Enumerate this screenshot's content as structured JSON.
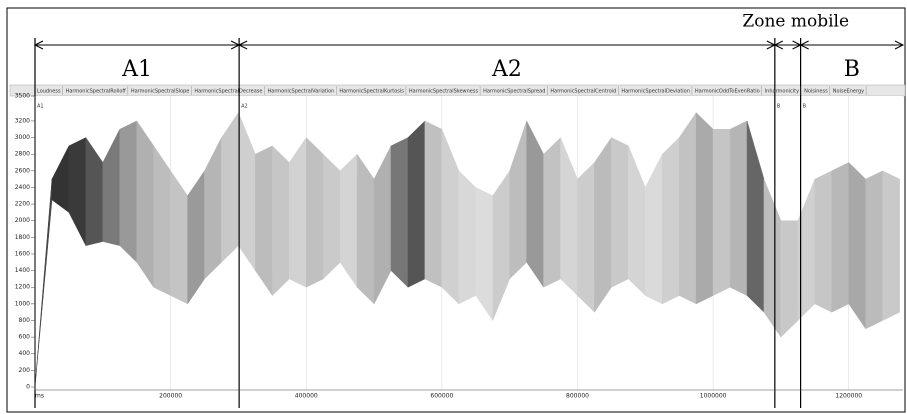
{
  "chart_data": {
    "type": "band",
    "x_label": "ms",
    "regions": [
      {
        "label": "A1",
        "start": 0,
        "end": 301000
      },
      {
        "label": "A2",
        "start": 301000,
        "end": 1091000
      },
      {
        "label": "Zone mobile",
        "start": 1091000,
        "end": 1129000
      },
      {
        "label": "B",
        "start": 1129000,
        "end": 1280000
      }
    ],
    "markers": [
      {
        "label": "A1",
        "position": 0
      },
      {
        "label": "A2",
        "position": 301000
      },
      {
        "label": "B",
        "position": 1091000
      },
      {
        "label": "B",
        "position": 1129000
      }
    ],
    "tabs": [
      "Loudness",
      "HarmonicSpectralRolloff",
      "HarmonicSpectralSlope",
      "HarmonicSpectralDecrease",
      "HarmonicSpectralVariation",
      "HarmonicSpectralKurtosis",
      "HarmonicSpectralSkewness",
      "HarmonicSpectralSpread",
      "HarmonicSpectralCentroid",
      "HarmonicSpectralDeviation",
      "HarmonicOddToEvenRatio",
      "Inharmonicity",
      "Noisiness",
      "NoiseEnergy"
    ],
    "x": [
      0,
      25000,
      50000,
      75000,
      100000,
      125000,
      150000,
      175000,
      200000,
      225000,
      250000,
      275000,
      300000,
      325000,
      350000,
      375000,
      400000,
      425000,
      450000,
      475000,
      500000,
      525000,
      550000,
      575000,
      600000,
      625000,
      650000,
      675000,
      700000,
      725000,
      750000,
      775000,
      800000,
      825000,
      850000,
      875000,
      900000,
      925000,
      950000,
      975000,
      1000000,
      1025000,
      1050000,
      1075000,
      1100000,
      1125000,
      1150000,
      1175000,
      1200000,
      1225000,
      1250000,
      1275000
    ],
    "series": [
      {
        "name": "upper",
        "values": [
          0,
          2500,
          2900,
          3000,
          2700,
          3100,
          3200,
          2900,
          2600,
          2300,
          2600,
          3000,
          3300,
          2800,
          2900,
          2700,
          3000,
          2800,
          2600,
          2800,
          2500,
          2900,
          3000,
          3200,
          3100,
          2600,
          2400,
          2300,
          2600,
          3200,
          2800,
          3000,
          2500,
          2700,
          3000,
          2900,
          2400,
          2800,
          3000,
          3300,
          3100,
          3100,
          3200,
          2500,
          2000,
          2000,
          2500,
          2600,
          2700,
          2500,
          2600,
          2500
        ]
      },
      {
        "name": "lower",
        "values": [
          0,
          2250,
          2100,
          1700,
          1750,
          1700,
          1500,
          1200,
          1100,
          1000,
          1300,
          1500,
          1700,
          1400,
          1100,
          1300,
          1200,
          1300,
          1500,
          1200,
          1000,
          1400,
          1200,
          1300,
          1200,
          1000,
          1100,
          800,
          1300,
          1500,
          1200,
          1300,
          1100,
          900,
          1200,
          1300,
          1100,
          1000,
          1100,
          1000,
          1100,
          1200,
          1100,
          900,
          600,
          800,
          1000,
          900,
          1000,
          700,
          800,
          900
        ]
      }
    ],
    "shades": [
      "#444444",
      "#333333",
      "#3a3a3a",
      "#555555",
      "#7a7a7a",
      "#999999",
      "#b0b0b0",
      "#bdbdbd",
      "#c4c4c4",
      "#9a9a9a",
      "#b5b5b5",
      "#c8c8c8",
      "#cfcfcf",
      "#bcbcbc",
      "#c6c6c6",
      "#d2d2d2",
      "#c0c0c0",
      "#cacaca",
      "#d4d4d4",
      "#bcbcbc",
      "#b0b0b0",
      "#777777",
      "#555555",
      "#c0c0c0",
      "#d0d0d0",
      "#d8d8d8",
      "#dcdcdc",
      "#cccccc",
      "#bdbdbd",
      "#999999",
      "#c2c2c2",
      "#d5d5d5",
      "#cccccc",
      "#bbbbbb",
      "#c9c9c9",
      "#d4d4d4",
      "#dadada",
      "#cfcfcf",
      "#c2c2c2",
      "#aaaaaa",
      "#c5c5c5",
      "#b5b5b5",
      "#666666",
      "#bdbdbd",
      "#c8c8c8",
      "#d0d0d0",
      "#c6c6c6",
      "#b8b8b8",
      "#a8a8a8",
      "#bbbbbb",
      "#c9c9c9"
    ],
    "xlim": [
      0,
      1280000
    ],
    "ylim": [
      0,
      3500
    ],
    "xticks": [
      200000,
      400000,
      600000,
      800000,
      1000000,
      1200000
    ],
    "yticks": [
      0,
      200,
      400,
      600,
      800,
      1000,
      1200,
      1400,
      1600,
      1800,
      2000,
      2200,
      2400,
      2600,
      2800,
      3000,
      3200,
      3500
    ],
    "grid": true
  }
}
